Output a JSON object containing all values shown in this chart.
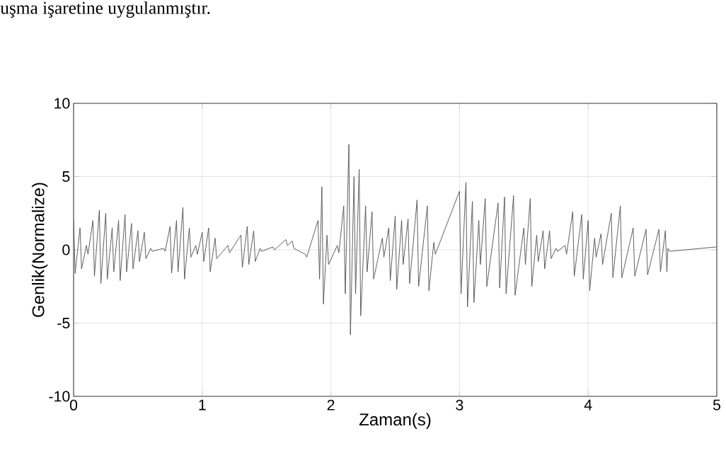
{
  "chart_data": {
    "type": "line",
    "xlabel": "Zaman(s)",
    "ylabel": "Genlik(Normalize)",
    "annotations": [
      "uşma işaretine uygulanmıştır."
    ],
    "xlim": [
      0,
      5
    ],
    "ylim": [
      -10,
      10
    ],
    "xticks": [
      0,
      1,
      2,
      3,
      4,
      5
    ],
    "yticks": [
      -10,
      -5,
      0,
      5,
      10
    ],
    "grid": true,
    "series": [
      {
        "color": "#555555",
        "x": [
          0.0,
          0.012,
          0.05,
          0.062,
          0.1,
          0.112,
          0.15,
          0.162,
          0.2,
          0.212,
          0.25,
          0.262,
          0.3,
          0.312,
          0.35,
          0.362,
          0.4,
          0.412,
          0.45,
          0.462,
          0.5,
          0.512,
          0.55,
          0.562,
          0.6,
          0.612,
          0.7,
          0.712,
          0.75,
          0.762,
          0.8,
          0.812,
          0.85,
          0.862,
          0.9,
          0.912,
          0.95,
          0.962,
          1.0,
          1.012,
          1.05,
          1.062,
          1.1,
          1.112,
          1.2,
          1.212,
          1.3,
          1.312,
          1.35,
          1.362,
          1.4,
          1.412,
          1.45,
          1.462,
          1.55,
          1.562,
          1.65,
          1.662,
          1.7,
          1.712,
          1.8,
          1.812,
          1.9,
          1.912,
          1.93,
          1.942,
          1.97,
          1.982,
          2.05,
          2.062,
          2.1,
          2.112,
          2.14,
          2.152,
          2.18,
          2.192,
          2.22,
          2.232,
          2.27,
          2.282,
          2.32,
          2.332,
          2.4,
          2.412,
          2.45,
          2.462,
          2.5,
          2.512,
          2.55,
          2.562,
          2.6,
          2.612,
          2.67,
          2.682,
          2.75,
          2.762,
          2.8,
          2.812,
          3.0,
          3.012,
          3.05,
          3.062,
          3.1,
          3.112,
          3.15,
          3.162,
          3.2,
          3.212,
          3.3,
          3.312,
          3.35,
          3.362,
          3.42,
          3.432,
          3.5,
          3.512,
          3.55,
          3.562,
          3.6,
          3.612,
          3.65,
          3.662,
          3.7,
          3.712,
          3.75,
          3.762,
          3.82,
          3.832,
          3.88,
          3.892,
          3.95,
          3.962,
          4.0,
          4.012,
          4.05,
          4.062,
          4.1,
          4.112,
          4.18,
          4.192,
          4.25,
          4.262,
          4.35,
          4.362,
          4.45,
          4.462,
          4.55,
          4.562,
          4.6,
          4.612,
          4.62,
          4.632,
          5.0
        ],
        "values": [
          2.1,
          -1.6,
          1.5,
          -1.3,
          0.3,
          -0.3,
          2.0,
          -1.8,
          2.7,
          -2.3,
          2.5,
          -2.0,
          1.5,
          -1.5,
          2.0,
          -2.1,
          2.4,
          -1.5,
          1.8,
          -1.3,
          1.3,
          -0.8,
          1.2,
          -0.6,
          0.1,
          -0.1,
          0.1,
          -0.1,
          1.6,
          -1.6,
          2.0,
          -1.5,
          2.9,
          -2.0,
          1.5,
          -0.5,
          0.3,
          -0.3,
          1.2,
          -0.8,
          1.5,
          -1.5,
          0.8,
          -0.6,
          0.3,
          -0.2,
          1.0,
          -1.2,
          1.6,
          -1.0,
          1.3,
          -0.8,
          0.1,
          -0.1,
          0.2,
          0.0,
          0.7,
          0.3,
          0.6,
          0.1,
          -0.3,
          -0.5,
          2.0,
          -2.0,
          4.3,
          -3.7,
          1.0,
          -1.0,
          0.3,
          -0.2,
          3.0,
          -3.0,
          7.2,
          -5.8,
          5.0,
          -3.0,
          5.5,
          -4.5,
          3.0,
          -1.5,
          2.6,
          -2.0,
          0.8,
          -0.5,
          1.5,
          -2.1,
          2.3,
          -2.7,
          2.0,
          -1.0,
          2.1,
          -2.3,
          3.4,
          -2.5,
          3.0,
          -2.8,
          0.5,
          -0.3,
          4.0,
          -3.0,
          4.6,
          -3.9,
          3.3,
          -3.6,
          2.0,
          -1.0,
          3.5,
          -2.5,
          3.2,
          -2.6,
          3.6,
          -3.0,
          3.7,
          -3.1,
          1.5,
          -1.0,
          3.5,
          -2.5,
          1.0,
          -0.8,
          1.3,
          -1.3,
          1.3,
          -0.6,
          0.1,
          -0.1,
          0.3,
          -0.3,
          2.6,
          -1.8,
          2.4,
          -2.0,
          2.0,
          -2.8,
          0.8,
          -0.5,
          1.1,
          -1.0,
          2.5,
          -1.9,
          3.0,
          -1.9,
          1.5,
          -1.8,
          1.4,
          -1.7,
          1.4,
          -1.5,
          1.3,
          -1.5,
          0.1,
          -0.1,
          0.2
        ]
      }
    ]
  }
}
